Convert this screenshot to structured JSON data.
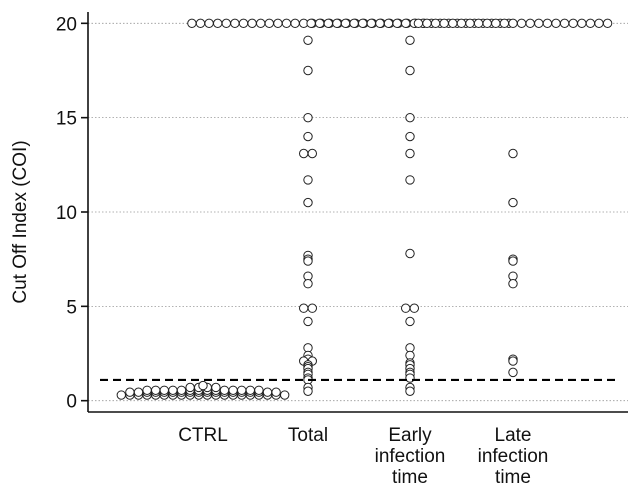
{
  "chart_data": {
    "type": "scatter",
    "title": "",
    "xlabel": "",
    "ylabel": "Cut Off Index (COI)",
    "ylim": [
      -0.6,
      20.6
    ],
    "yticks": [
      0,
      5,
      10,
      15,
      20
    ],
    "grid": "horizontal-dotted",
    "categories": [
      {
        "lines": [
          "CTRL"
        ]
      },
      {
        "lines": [
          "Total"
        ]
      },
      {
        "lines": [
          "Early",
          "infection",
          "time"
        ]
      },
      {
        "lines": [
          "Late",
          "infection",
          "time"
        ]
      }
    ],
    "cutoff": 1.1,
    "series": [
      {
        "category_index": 0,
        "values": [
          0.3,
          0.3,
          0.3,
          0.3,
          0.3,
          0.3,
          0.3,
          0.3,
          0.3,
          0.3,
          0.3,
          0.3,
          0.3,
          0.3,
          0.3,
          0.3,
          0.3,
          0.3,
          0.3,
          0.3,
          0.45,
          0.45,
          0.45,
          0.45,
          0.45,
          0.45,
          0.45,
          0.45,
          0.45,
          0.45,
          0.45,
          0.45,
          0.45,
          0.45,
          0.45,
          0.45,
          0.45,
          0.45,
          0.55,
          0.55,
          0.55,
          0.55,
          0.55,
          0.55,
          0.55,
          0.55,
          0.55,
          0.55,
          0.55,
          0.55,
          0.55,
          0.55,
          0.7,
          0.7,
          0.7,
          0.7,
          0.8
        ]
      },
      {
        "category_index": 1,
        "values": [
          20,
          20,
          20,
          20,
          20,
          20,
          20,
          20,
          20,
          20,
          20,
          20,
          20,
          20,
          20,
          20,
          20,
          20,
          20,
          20,
          20,
          20,
          20,
          20,
          20,
          20,
          20,
          20,
          19.1,
          17.5,
          15.0,
          14.0,
          13.1,
          13.1,
          11.7,
          10.5,
          7.7,
          7.5,
          7.4,
          6.6,
          6.2,
          4.9,
          4.9,
          4.2,
          2.8,
          2.4,
          2.2,
          2.1,
          2.1,
          1.9,
          1.8,
          1.7,
          1.5,
          1.4,
          1.2,
          1.1,
          0.7,
          0.5
        ]
      },
      {
        "category_index": 2,
        "values": [
          20,
          20,
          20,
          20,
          20,
          20,
          20,
          20,
          20,
          20,
          20,
          20,
          20,
          20,
          20,
          20,
          20,
          20,
          20,
          20,
          20,
          20,
          20,
          20,
          19.1,
          17.5,
          15.0,
          14.0,
          13.1,
          11.7,
          7.8,
          4.9,
          4.9,
          4.2,
          2.8,
          2.4,
          2.0,
          1.9,
          1.7,
          1.5,
          1.4,
          1.2,
          0.7,
          0.5
        ]
      },
      {
        "category_index": 3,
        "values": [
          20,
          20,
          20,
          20,
          20,
          20,
          20,
          20,
          20,
          20,
          20,
          20,
          20,
          20,
          20,
          20,
          20,
          20,
          20,
          20,
          20,
          20,
          20,
          13.1,
          10.5,
          7.5,
          7.4,
          6.6,
          6.2,
          2.2,
          2.1,
          1.5
        ]
      }
    ]
  }
}
